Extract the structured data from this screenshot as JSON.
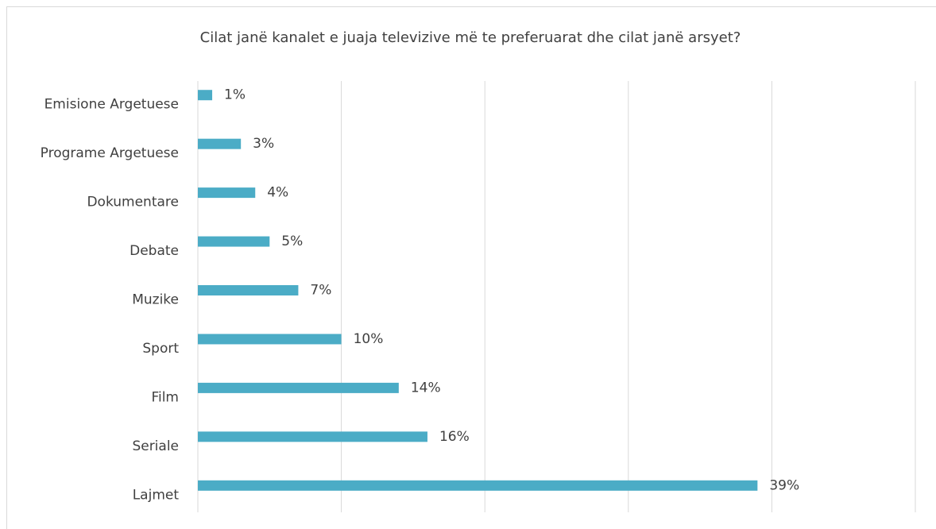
{
  "chart_data": {
    "type": "bar",
    "orientation": "horizontal",
    "title": "Cilat janë kanalet e juaja televizive më te preferuarat dhe cilat janë arsyet?",
    "categories": [
      "Emisione Argetuese",
      "Programe Argetuese",
      "Dokumentare",
      "Debate",
      "Muzike",
      "Sport",
      "Film",
      "Seriale",
      "Lajmet"
    ],
    "values": [
      1,
      3,
      4,
      5,
      7,
      10,
      14,
      16,
      39
    ],
    "value_labels": [
      "1%",
      "3%",
      "4%",
      "5%",
      "7%",
      "10%",
      "14%",
      "16%",
      "39%"
    ],
    "color": "#4bacc6",
    "xlim": [
      0,
      50
    ],
    "xticks": [
      0,
      10,
      20,
      30,
      40,
      50
    ],
    "grid": true
  }
}
